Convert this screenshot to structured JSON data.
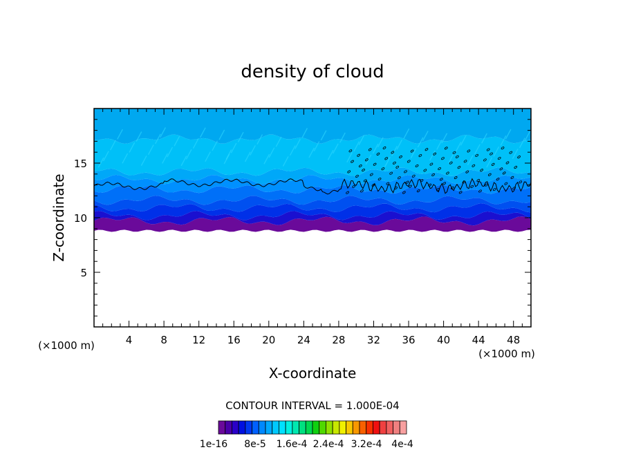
{
  "chart_data": {
    "type": "heatmap",
    "title": "density of cloud",
    "xlabel": "X-coordinate",
    "ylabel": "Z-coordinate",
    "x_unit": "(×1000 m)",
    "z_unit": "(×1000 m)",
    "xlim": [
      0,
      50
    ],
    "ylim": [
      0,
      20
    ],
    "x_ticks": [
      4,
      8,
      12,
      16,
      20,
      24,
      28,
      32,
      36,
      40,
      44,
      48
    ],
    "y_ticks": [
      5,
      10,
      15
    ],
    "contour_interval_label": "CONTOUR INTERVAL = 1.000E-04",
    "colorbar": {
      "labels": [
        "1e-16",
        "8e-5",
        "1.6e-4",
        "2.4e-4",
        "3.2e-4",
        "4e-4"
      ],
      "colors": [
        "#6a0a9a",
        "#4a00a8",
        "#2a00c8",
        "#0010e0",
        "#0038f0",
        "#0060ff",
        "#0088ff",
        "#00a8ff",
        "#00c8ff",
        "#00e0ff",
        "#00f0e0",
        "#00e8b0",
        "#00e080",
        "#00d850",
        "#10d010",
        "#50d800",
        "#90e000",
        "#c8e800",
        "#f0f000",
        "#f8c800",
        "#f89800",
        "#f86000",
        "#f83000",
        "#f01010",
        "#f04040",
        "#f06060",
        "#f08080",
        "#f8a0a0"
      ]
    },
    "layers": [
      {
        "z_bottom": 8.8,
        "z_top": 9.7,
        "color": "#6a0a9a",
        "value": "1e-16"
      },
      {
        "z_bottom": 9.7,
        "z_top": 10.2,
        "color": "#1a10d0"
      },
      {
        "z_bottom": 10.2,
        "z_top": 10.9,
        "color": "#0030e8"
      },
      {
        "z_bottom": 10.9,
        "z_top": 11.6,
        "color": "#0050f0"
      },
      {
        "z_bottom": 11.6,
        "z_top": 12.6,
        "color": "#0070f8"
      },
      {
        "z_bottom": 12.6,
        "z_top": 13.5,
        "color": "#0090ff"
      },
      {
        "z_bottom": 13.5,
        "z_top": 14.2,
        "color": "#00a8f8"
      },
      {
        "z_bottom": 14.2,
        "z_top": 17.2,
        "color": "#00c0f8"
      },
      {
        "z_bottom": 17.2,
        "z_top": 20.0,
        "color": "#00a8f0"
      }
    ],
    "contour_line_z": 12.9
  }
}
